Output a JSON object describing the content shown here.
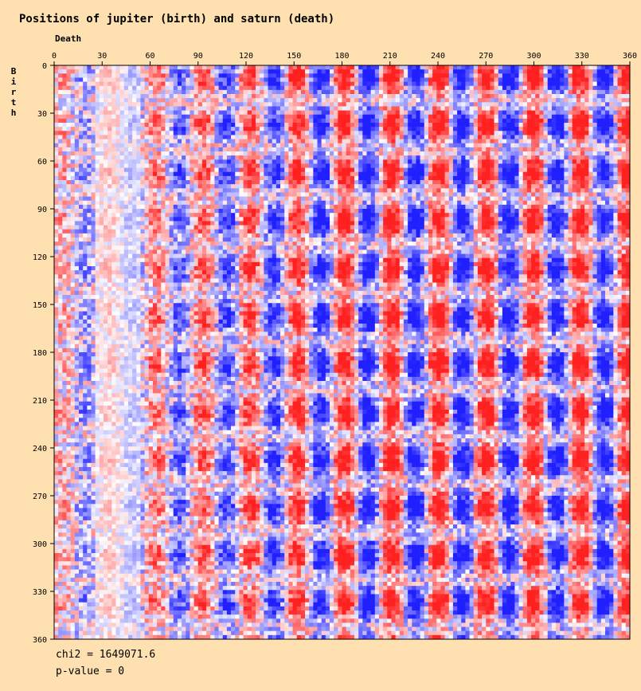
{
  "chart_data": {
    "type": "heatmap",
    "title": "Positions of jupiter (birth) and saturn (death)",
    "xlabel": "Death",
    "ylabel": "Birth",
    "x_range": [
      0,
      360
    ],
    "y_range": [
      0,
      360
    ],
    "x_ticks": [
      0,
      30,
      60,
      90,
      120,
      150,
      180,
      210,
      240,
      270,
      300,
      330,
      360
    ],
    "y_ticks": [
      0,
      30,
      60,
      90,
      120,
      150,
      180,
      210,
      240,
      270,
      300,
      330,
      360
    ],
    "x_tick_labels": [
      "0",
      "30",
      "60",
      "90",
      "120",
      "150",
      "180",
      "210",
      "240",
      "270",
      "300",
      "330",
      "360"
    ],
    "y_tick_labels": [
      "0",
      "30",
      "60",
      "90",
      "120",
      "150",
      "180",
      "210",
      "240",
      "270",
      "300",
      "330",
      "360"
    ],
    "color_scale": {
      "low": "#2020ff",
      "mid": "#ffffff",
      "high": "#ff2020"
    },
    "description_stats": {
      "chi2_text": "chi2 = 1649071.6",
      "pvalue_text": "p-value = 0"
    }
  },
  "colors": {
    "background": "#ffe0b0",
    "high": "#ff2020",
    "low": "#2020ff",
    "neutral": "#ffffff"
  }
}
